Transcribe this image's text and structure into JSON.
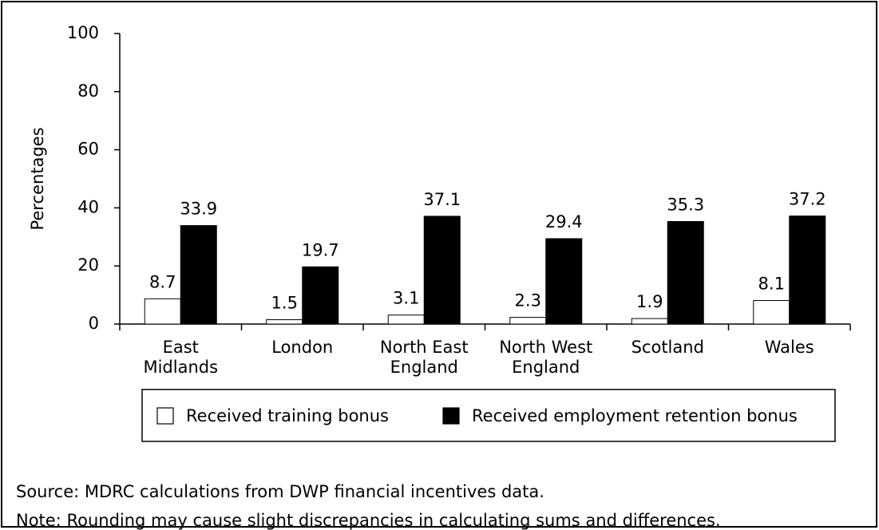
{
  "chart_data": {
    "type": "bar",
    "y_label": "Percentages",
    "categories": [
      "East Midlands",
      "London",
      "North East England",
      "North West England",
      "Scotland",
      "Wales"
    ],
    "series": [
      {
        "name": "Received training bonus",
        "color": "#ffffff",
        "values": [
          8.7,
          1.5,
          3.1,
          2.3,
          1.9,
          8.1
        ]
      },
      {
        "name": "Received employment retention bonus",
        "color": "#000000",
        "values": [
          33.9,
          19.7,
          37.1,
          29.4,
          35.3,
          37.2
        ]
      }
    ],
    "ylim": [
      0,
      100
    ],
    "yticks": [
      0,
      20,
      40,
      60,
      80,
      100
    ],
    "source": "Source: MDRC calculations from DWP financial incentives data.",
    "note": "Note: Rounding may cause slight discrepancies in calculating sums and differences."
  }
}
